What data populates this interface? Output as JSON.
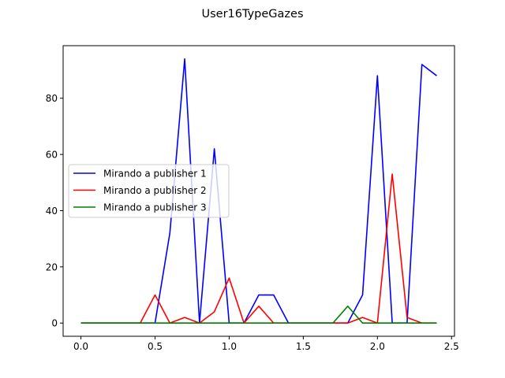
{
  "chart_data": {
    "type": "line",
    "title": "User16TypeGazes",
    "xlabel": "",
    "ylabel": "",
    "xlim": [
      -0.12,
      2.52
    ],
    "ylim": [
      -4.7,
      98.7
    ],
    "xticks": [
      0.0,
      0.5,
      1.0,
      1.5,
      2.0,
      2.5
    ],
    "xtick_labels": [
      "0.0",
      "0.5",
      "1.0",
      "1.5",
      "2.0",
      "2.5"
    ],
    "yticks": [
      0,
      20,
      40,
      60,
      80
    ],
    "ytick_labels": [
      "0",
      "20",
      "40",
      "60",
      "80"
    ],
    "grid": false,
    "legend_position": "center-left",
    "x": [
      0.0,
      0.1,
      0.2,
      0.3,
      0.4,
      0.5,
      0.6,
      0.7,
      0.8,
      0.9,
      1.0,
      1.1,
      1.2,
      1.3,
      1.4,
      1.5,
      1.6,
      1.7,
      1.8,
      1.9,
      2.0,
      2.1,
      2.2,
      2.3,
      2.4
    ],
    "series": [
      {
        "name": "Mirando a publisher 1",
        "color": "#0000ff",
        "values": [
          0,
          0,
          0,
          0,
          0,
          0,
          32,
          94,
          0,
          62,
          0,
          0,
          10,
          10,
          0,
          0,
          0,
          0,
          0,
          10,
          88,
          0,
          0,
          92,
          88
        ]
      },
      {
        "name": "Mirando a publisher 2",
        "color": "#ff0000",
        "values": [
          0,
          0,
          0,
          0,
          0,
          10,
          0,
          2,
          0,
          4,
          16,
          0,
          6,
          0,
          0,
          0,
          0,
          0,
          0,
          2,
          0,
          53,
          2,
          0,
          0
        ]
      },
      {
        "name": "Mirando a publisher 3",
        "color": "#008000",
        "values": [
          0,
          0,
          0,
          0,
          0,
          0,
          0,
          0,
          0,
          0,
          0,
          0,
          0,
          0,
          0,
          0,
          0,
          0,
          6,
          0,
          0,
          0,
          0,
          0,
          0
        ]
      }
    ]
  }
}
